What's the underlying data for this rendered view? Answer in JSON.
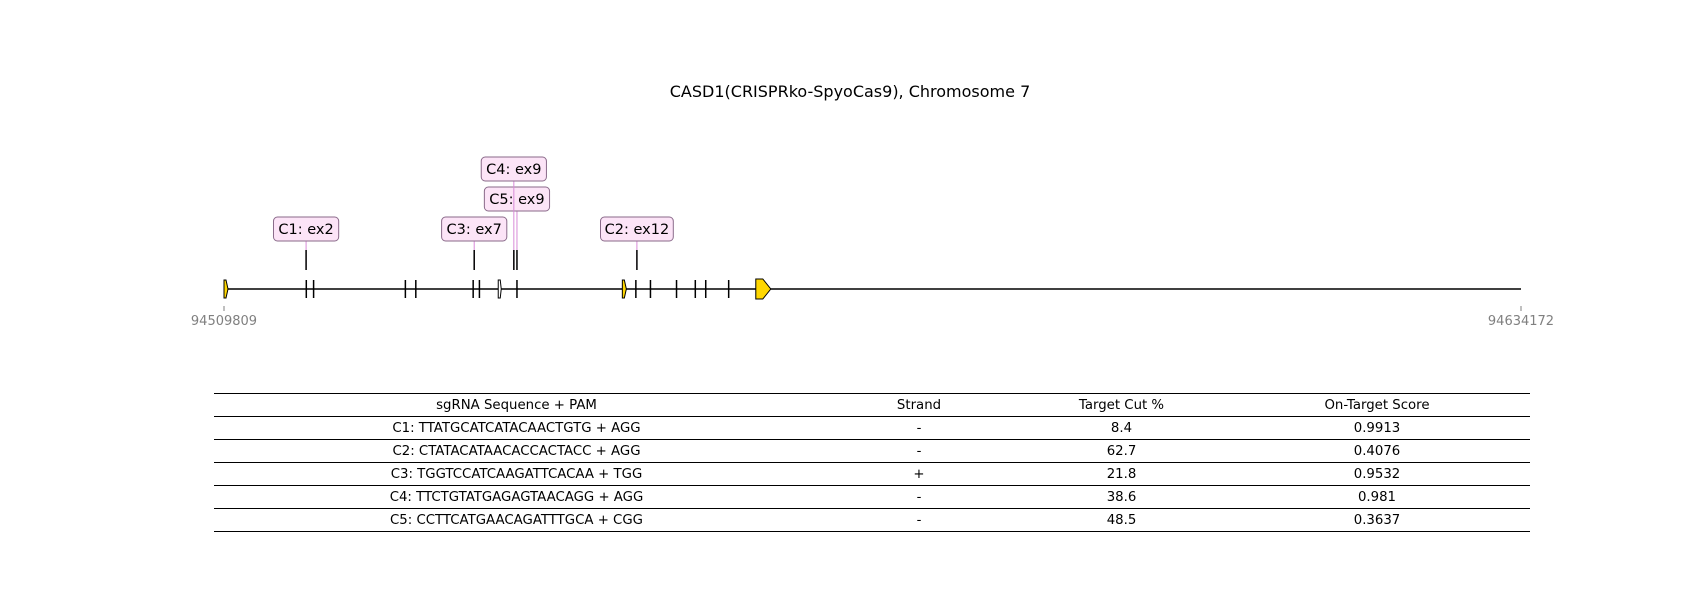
{
  "title": "CASD1(CRISPRko-SpyoCas9), Chromosome 7",
  "chart_data": {
    "type": "gene_map",
    "region": {
      "start": 94509809,
      "end": 94634172,
      "start_label": "94509809",
      "end_label": "94634172"
    },
    "colors": {
      "exon_end": "#ffd700",
      "label_fill": "#fce4f7",
      "label_border": "#8a6a8a",
      "axis_text": "#808080"
    },
    "exons": [
      94509809,
      94517700,
      94518400,
      94527200,
      94528200,
      94533700,
      94534300,
      94536200,
      94537900,
      94548100,
      94549300,
      94550700,
      94553200,
      94555000,
      94556000,
      94558200
    ],
    "exon_end": 94560800,
    "guides": [
      {
        "id": "C1",
        "label": "C1: ex2",
        "position": 94517680,
        "level": 0
      },
      {
        "id": "C3",
        "label": "C3: ex7",
        "position": 94533800,
        "level": 0
      },
      {
        "id": "C2",
        "label": "C2: ex12",
        "position": 94549400,
        "level": 0
      },
      {
        "id": "C5",
        "label": "C5: ex9",
        "position": 94537900,
        "level": 1
      },
      {
        "id": "C4",
        "label": "C4: ex9",
        "position": 94537600,
        "level": 2
      }
    ]
  },
  "table": {
    "headers": [
      "sgRNA Sequence + PAM",
      "Strand",
      "Target Cut %",
      "On-Target Score"
    ],
    "rows": [
      [
        "C1: TTATGCATCATACAACTGTG + AGG",
        "-",
        "8.4",
        "0.9913"
      ],
      [
        "C2: CTATACATAACACCACTACC + AGG",
        "-",
        "62.7",
        "0.4076"
      ],
      [
        "C3: TGGTCCATCAAGATTCACAA + TGG",
        "+",
        "21.8",
        "0.9532"
      ],
      [
        "C4: TTCTGTATGAGAGTAACAGG + AGG",
        "-",
        "38.6",
        "0.981"
      ],
      [
        "C5: CCTTCATGAACAGATTTGCA + CGG",
        "-",
        "48.5",
        "0.3637"
      ]
    ]
  }
}
